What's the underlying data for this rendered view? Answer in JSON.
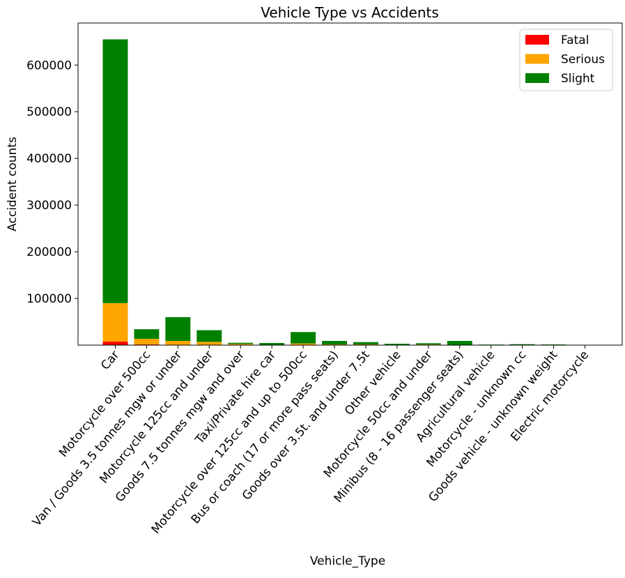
{
  "chart_data": {
    "type": "bar",
    "stacked": true,
    "title": "Vehicle Type vs Accidents",
    "xlabel": "Vehicle_Type",
    "ylabel": "Accident counts",
    "ylim": [
      0,
      690000
    ],
    "yticks": [
      100000,
      200000,
      300000,
      400000,
      500000,
      600000
    ],
    "grid": false,
    "legend_position": "top-right",
    "categories": [
      "Car",
      "Motorcycle over 500cc",
      "Van / Goods 3.5 tonnes mgw or under",
      "Motorcycle 125cc and under",
      "Goods 7.5 tonnes mgw and over",
      "Taxi/Private hire car",
      "Motorcycle over 125cc and up to 500cc",
      "Bus or coach (17 or more pass seats)",
      "Goods over 3.5t. and under 7.5t",
      "Other vehicle",
      "Motorcycle 50cc and under",
      "Minibus (8 - 16 passenger seats)",
      "Agricultural vehicle",
      "Motorcycle - unknown cc",
      "Goods vehicle - unknown weight",
      "Electric motorcycle"
    ],
    "series": [
      {
        "name": "Fatal",
        "color": "#ff0000",
        "values": [
          7500,
          1400,
          900,
          700,
          650,
          100,
          300,
          150,
          150,
          60,
          80,
          20,
          40,
          30,
          10,
          2
        ]
      },
      {
        "name": "Serious",
        "color": "#ffa500",
        "values": [
          82500,
          12100,
          8100,
          6300,
          1850,
          550,
          3200,
          1350,
          1250,
          740,
          1320,
          330,
          460,
          670,
          240,
          48
        ]
      },
      {
        "name": "Slight",
        "color": "#008000",
        "values": [
          565000,
          20500,
          51000,
          25000,
          2500,
          3850,
          24500,
          7500,
          5100,
          2200,
          2600,
          8650,
          700,
          1300,
          1150,
          150
        ]
      }
    ]
  }
}
